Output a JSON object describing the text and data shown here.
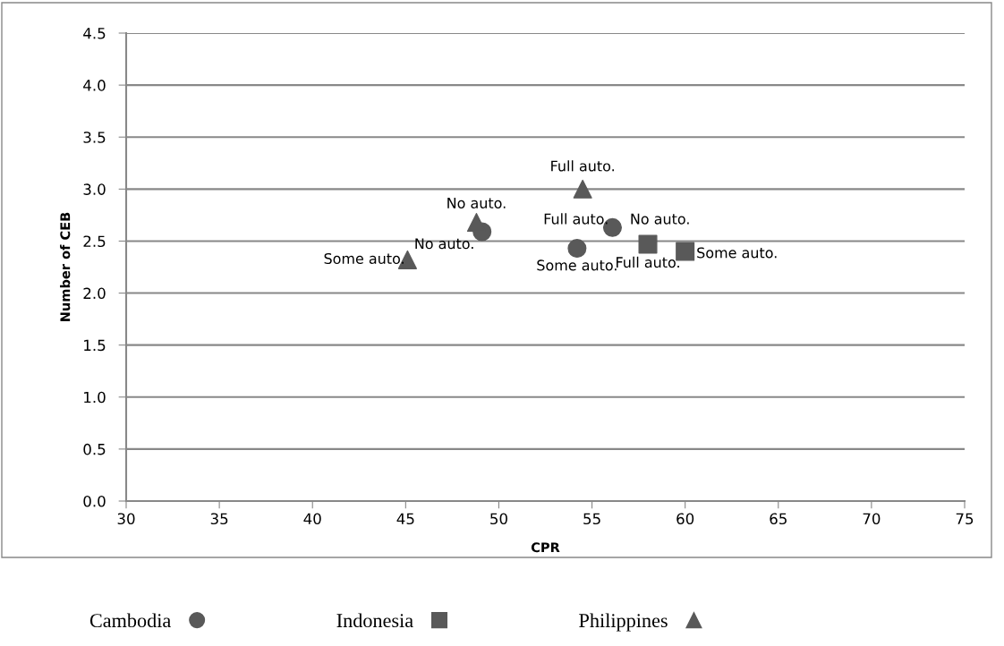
{
  "chart_data": {
    "type": "scatter",
    "xlabel": "CPR",
    "ylabel": "Number of CEB",
    "xlim": [
      30,
      75
    ],
    "xticks": [
      30,
      35,
      40,
      45,
      50,
      55,
      60,
      65,
      70,
      75
    ],
    "ylim": [
      0,
      4.5
    ],
    "yticks": [
      {
        "value": 0,
        "label": "0.0"
      },
      {
        "value": 0.5,
        "label": "0.5"
      },
      {
        "value": 1,
        "label": "1.0"
      },
      {
        "value": 1.5,
        "label": "1.5"
      },
      {
        "value": 2,
        "label": "2.0"
      },
      {
        "value": 2.5,
        "label": "2.5"
      },
      {
        "value": 3,
        "label": "3.0"
      },
      {
        "value": 3.5,
        "label": "3.5"
      },
      {
        "value": 4,
        "label": "4.0"
      },
      {
        "value": 4.5,
        "label": "4.5"
      }
    ],
    "grid": "y",
    "legend": "bottom",
    "series": [
      {
        "name": "Cambodia",
        "color": "#595959",
        "marker": "circle",
        "x": [
          49.1,
          54.2,
          56.1
        ],
        "values": [
          2.59,
          2.43,
          2.63
        ]
      },
      {
        "name": "Indonesia",
        "color": "#595959",
        "marker": "square",
        "x": [
          58.0,
          60.0
        ],
        "values": [
          2.47,
          2.4
        ]
      },
      {
        "name": "Philippines",
        "color": "#595959",
        "marker": "triangle",
        "x": [
          54.5,
          48.8,
          45.1
        ],
        "values": [
          3.0,
          2.68,
          2.32
        ]
      }
    ],
    "annotations": [
      {
        "text": "Full auto.",
        "x": 54.5,
        "y": 3.0
      },
      {
        "text": "No auto.",
        "x": 48.8,
        "y": 2.68
      },
      {
        "text": "No auto.",
        "x": 49.1,
        "y": 2.59
      },
      {
        "text": "Some auto.",
        "x": 45.1,
        "y": 2.32
      },
      {
        "text": "Some auto.",
        "x": 54.2,
        "y": 2.43
      },
      {
        "text": "Full auto.",
        "x": 56.1,
        "y": 2.63
      },
      {
        "text": "No auto.",
        "x": 56.1,
        "y": 2.63
      },
      {
        "text": "Full auto.",
        "x": 58.0,
        "y": 2.47
      },
      {
        "text": "Some auto.",
        "x": 60.0,
        "y": 2.4
      }
    ]
  }
}
